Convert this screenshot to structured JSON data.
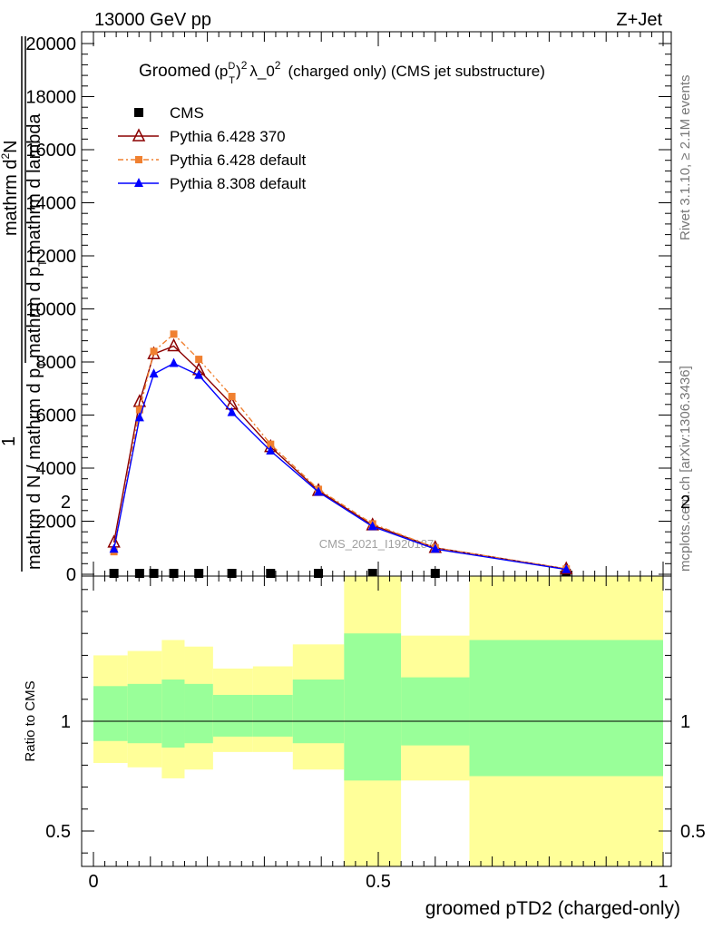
{
  "header": {
    "left": "13000 GeV pp",
    "right": "Z+Jet"
  },
  "side_labels": {
    "rivet": "Rivet 3.1.10, ≥ 2.1M events",
    "mcplots": "mcplots.cern.ch [arXiv:1306.3436]"
  },
  "watermark": "CMS_2021_I1920187",
  "chart_data": [
    {
      "type": "line",
      "title_parts": {
        "lead": "Groomed",
        "p": "(p",
        "sup_d": "D",
        "sub_t": "T",
        "close": ")",
        "sup_2": "2",
        "mid": "λ_0",
        "sup_2b": "2",
        "tail": "(charged only) (CMS jet substructure)"
      },
      "ylabel_parts": {
        "one": "1",
        "num1": "mathrm d",
        "num1_sup": "2",
        "num2": "N",
        "den1": "mathrm d p",
        "den1_sub": "T",
        "den2": " mathrm d lambda",
        "bottom": "mathrm d N / mathrm d p",
        "bottom_sub": "T"
      },
      "xlim": [
        0,
        1
      ],
      "ylim": [
        0,
        20000
      ],
      "yticks": [
        "0",
        "2000",
        "4000",
        "6000",
        "8000",
        "10000",
        "12000",
        "14000",
        "16000",
        "18000",
        "20000"
      ],
      "legend_position": "top-left",
      "series": [
        {
          "name": "CMS",
          "color": "#000000",
          "marker": "square",
          "x": [
            0.036,
            0.081,
            0.106,
            0.141,
            0.185,
            0.243,
            0.311,
            0.395,
            0.49,
            0.6,
            0.83
          ],
          "y": [
            0,
            0,
            0,
            0,
            0,
            0,
            0,
            0,
            0,
            0,
            0
          ]
        },
        {
          "name": "Pythia 6.428 370",
          "color": "#8b0000",
          "marker": "triangle-open",
          "dash": "solid",
          "x": [
            0.036,
            0.081,
            0.106,
            0.141,
            0.185,
            0.243,
            0.311,
            0.395,
            0.49,
            0.6,
            0.83
          ],
          "y": [
            1200,
            6500,
            8300,
            8600,
            7700,
            6400,
            4800,
            3150,
            1850,
            1000,
            200
          ]
        },
        {
          "name": "Pythia 6.428 default",
          "color": "#f08030",
          "marker": "square-small",
          "dash": "dashdot",
          "x": [
            0.036,
            0.081,
            0.106,
            0.141,
            0.185,
            0.243,
            0.311,
            0.395,
            0.49,
            0.6,
            0.83
          ],
          "y": [
            850,
            6200,
            8400,
            9050,
            8100,
            6700,
            4900,
            3200,
            1900,
            1000,
            200
          ]
        },
        {
          "name": "Pythia 8.308 default",
          "color": "#0000ff",
          "marker": "triangle-filled",
          "dash": "solid",
          "x": [
            0.036,
            0.081,
            0.106,
            0.141,
            0.185,
            0.243,
            0.311,
            0.395,
            0.49,
            0.6,
            0.83
          ],
          "y": [
            950,
            5900,
            7550,
            7950,
            7500,
            6100,
            4650,
            3100,
            1800,
            950,
            180
          ]
        }
      ]
    },
    {
      "type": "area",
      "ylabel": "Ratio to CMS",
      "xlabel": "groomed pTD2 (charged-only)",
      "xlim": [
        0,
        1
      ],
      "ylim": [
        0.34,
        2.24
      ],
      "xticks": [
        "0",
        "0.5",
        "1"
      ],
      "yticks": [
        "0.5",
        "1",
        "2"
      ],
      "bands": {
        "stat_color": "#99ff99",
        "total_color": "#ffff99",
        "bins": [
          {
            "x0": 0.0,
            "x1": 0.06,
            "stat": [
              0.91,
              1.16
            ],
            "total": [
              0.81,
              1.3
            ]
          },
          {
            "x0": 0.06,
            "x1": 0.12,
            "stat": [
              0.9,
              1.17
            ],
            "total": [
              0.79,
              1.32
            ]
          },
          {
            "x0": 0.12,
            "x1": 0.16,
            "stat": [
              0.88,
              1.19
            ],
            "total": [
              0.74,
              1.37
            ]
          },
          {
            "x0": 0.16,
            "x1": 0.21,
            "stat": [
              0.9,
              1.17
            ],
            "total": [
              0.78,
              1.34
            ]
          },
          {
            "x0": 0.21,
            "x1": 0.28,
            "stat": [
              0.93,
              1.12
            ],
            "total": [
              0.86,
              1.24
            ]
          },
          {
            "x0": 0.28,
            "x1": 0.35,
            "stat": [
              0.93,
              1.12
            ],
            "total": [
              0.86,
              1.25
            ]
          },
          {
            "x0": 0.35,
            "x1": 0.44,
            "stat": [
              0.9,
              1.19
            ],
            "total": [
              0.78,
              1.35
            ]
          },
          {
            "x0": 0.44,
            "x1": 0.54,
            "stat": [
              0.73,
              1.4
            ],
            "total": [
              0.34,
              1.71
            ]
          },
          {
            "x0": 0.54,
            "x1": 0.66,
            "stat": [
              0.89,
              1.2
            ],
            "total": [
              0.73,
              1.39
            ]
          },
          {
            "x0": 0.66,
            "x1": 1.0,
            "stat": [
              0.75,
              1.37
            ],
            "total": [
              0.34,
              1.68
            ]
          }
        ]
      },
      "reference_line": 1
    }
  ]
}
